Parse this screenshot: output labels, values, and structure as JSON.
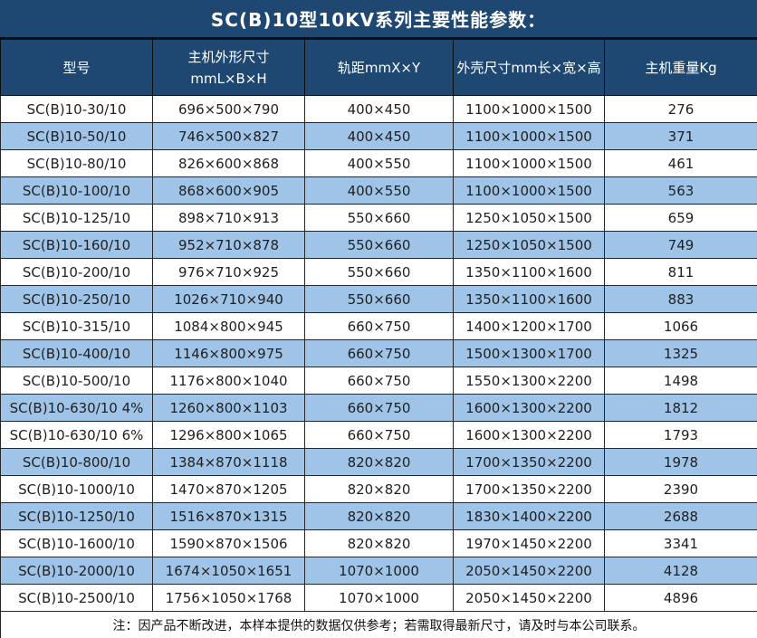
{
  "title": "SC(B)10型10KV系列主要性能参数：",
  "colors": {
    "header_bg": "#1e4872",
    "header_text": "#ffffff",
    "row_bg": "#ffffff",
    "row_alt_bg": "#9fc4e7",
    "body_text": "#1f1f1f",
    "border": "#262626"
  },
  "table": {
    "columns": [
      {
        "label": "型号"
      },
      {
        "label": "主机外形尺寸",
        "sublabel": "mmL×B×H"
      },
      {
        "label": "轨距mmX×Y"
      },
      {
        "label": "外壳尺寸mm长×宽×高"
      },
      {
        "label": "主机重量Kg"
      }
    ],
    "rows": [
      [
        "SC(B)10-30/10",
        "696×500×790",
        "400×450",
        "1100×1000×1500",
        "276"
      ],
      [
        "SC(B)10-50/10",
        "746×500×827",
        "400×450",
        "1100×1000×1500",
        "371"
      ],
      [
        "SC(B)10-80/10",
        "826×600×868",
        "400×550",
        "1100×1000×1500",
        "461"
      ],
      [
        "SC(B)10-100/10",
        "868×600×905",
        "400×550",
        "1100×1000×1500",
        "563"
      ],
      [
        "SC(B)10-125/10",
        "898×710×913",
        "550×660",
        "1250×1050×1500",
        "659"
      ],
      [
        "SC(B)10-160/10",
        "952×710×878",
        "550×660",
        "1250×1050×1500",
        "749"
      ],
      [
        "SC(B)10-200/10",
        "976×710×925",
        "550×660",
        "1350×1100×1600",
        "811"
      ],
      [
        "SC(B)10-250/10",
        "1026×710×940",
        "550×660",
        "1350×1100×1600",
        "883"
      ],
      [
        "SC(B)10-315/10",
        "1084×800×945",
        "660×750",
        "1400×1200×1700",
        "1066"
      ],
      [
        "SC(B)10-400/10",
        "1146×800×975",
        "660×750",
        "1500×1300×1700",
        "1325"
      ],
      [
        "SC(B)10-500/10",
        "1176×800×1040",
        "660×750",
        "1550×1300×2200",
        "1498"
      ],
      [
        "SC(B)10-630/10 4%",
        "1260×800×1103",
        "660×750",
        "1600×1300×2200",
        "1812"
      ],
      [
        "SC(B)10-630/10 6%",
        "1296×800×1065",
        "660×750",
        "1600×1300×2200",
        "1793"
      ],
      [
        "SC(B)10-800/10",
        "1384×870×1118",
        "820×820",
        "1700×1350×2200",
        "1978"
      ],
      [
        "SC(B)10-1000/10",
        "1470×870×1205",
        "820×820",
        "1700×1350×2200",
        "2390"
      ],
      [
        "SC(B)10-1250/10",
        "1516×870×1315",
        "820×820",
        "1830×1400×2200",
        "2688"
      ],
      [
        "SC(B)10-1600/10",
        "1590×870×1506",
        "820×820",
        "1970×1450×2200",
        "3341"
      ],
      [
        "SC(B)10-2000/10",
        "1674×1050×1651",
        "1070×1000",
        "2050×1450×2200",
        "4128"
      ],
      [
        "SC(B)10-2500/10",
        "1756×1050×1768",
        "1070×1000",
        "2050×1450×2200",
        "4896"
      ]
    ]
  },
  "footer_note": "注：因产品不断改进，本样本提供的数据仅供参考；若需取得最新尺寸，请及时与本公司联系。"
}
